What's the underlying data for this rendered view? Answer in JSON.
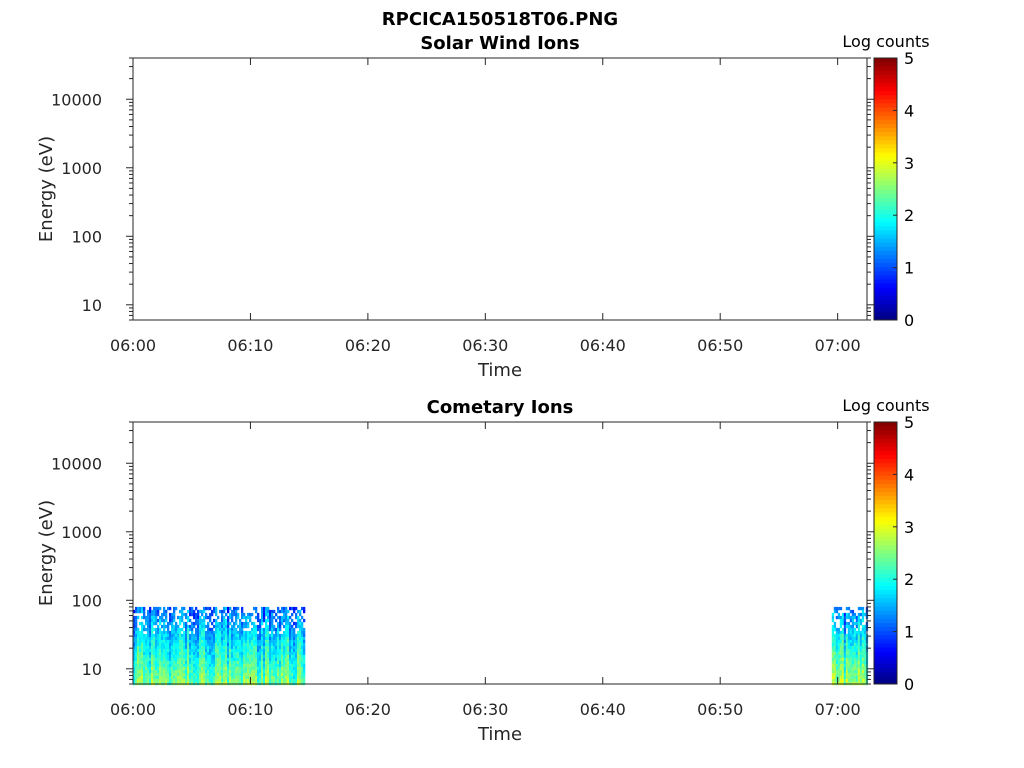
{
  "figure_title": "RPCICA150518T06.PNG",
  "chart_data": [
    {
      "type": "heatmap",
      "title": "Solar Wind Ions",
      "xlabel": "Time",
      "ylabel": "Energy (eV)",
      "x_ticks": [
        "06:00",
        "06:10",
        "06:20",
        "06:30",
        "06:40",
        "06:50",
        "07:00"
      ],
      "x_range_minutes": [
        0,
        62.5
      ],
      "y_scale": "log",
      "y_ticks": [
        "10",
        "100",
        "1000",
        "10000"
      ],
      "ylim": [
        6,
        40000
      ],
      "colorbar": {
        "label": "Log counts",
        "ticks": [
          "0",
          "1",
          "2",
          "3",
          "4",
          "5"
        ],
        "range": [
          0,
          5
        ],
        "colormap": "jet"
      },
      "data_blocks": []
    },
    {
      "type": "heatmap",
      "title": "Cometary Ions",
      "xlabel": "Time",
      "ylabel": "Energy (eV)",
      "x_ticks": [
        "06:00",
        "06:10",
        "06:20",
        "06:30",
        "06:40",
        "06:50",
        "07:00"
      ],
      "x_range_minutes": [
        0,
        62.5
      ],
      "y_scale": "log",
      "y_ticks": [
        "10",
        "100",
        "1000",
        "10000"
      ],
      "ylim": [
        6,
        40000
      ],
      "colorbar": {
        "label": "Log counts",
        "ticks": [
          "0",
          "1",
          "2",
          "3",
          "4",
          "5"
        ],
        "range": [
          0,
          5
        ],
        "colormap": "jet"
      },
      "data_blocks": [
        {
          "t_start": "06:00",
          "t_end": "06:14:30",
          "e_min": 6,
          "e_max": 80,
          "log_counts_range": [
            0.5,
            3
          ]
        },
        {
          "t_start": "06:59:30",
          "t_end": "07:02:30",
          "e_min": 6,
          "e_max": 80,
          "log_counts_range": [
            0.5,
            3.2
          ]
        }
      ]
    }
  ]
}
